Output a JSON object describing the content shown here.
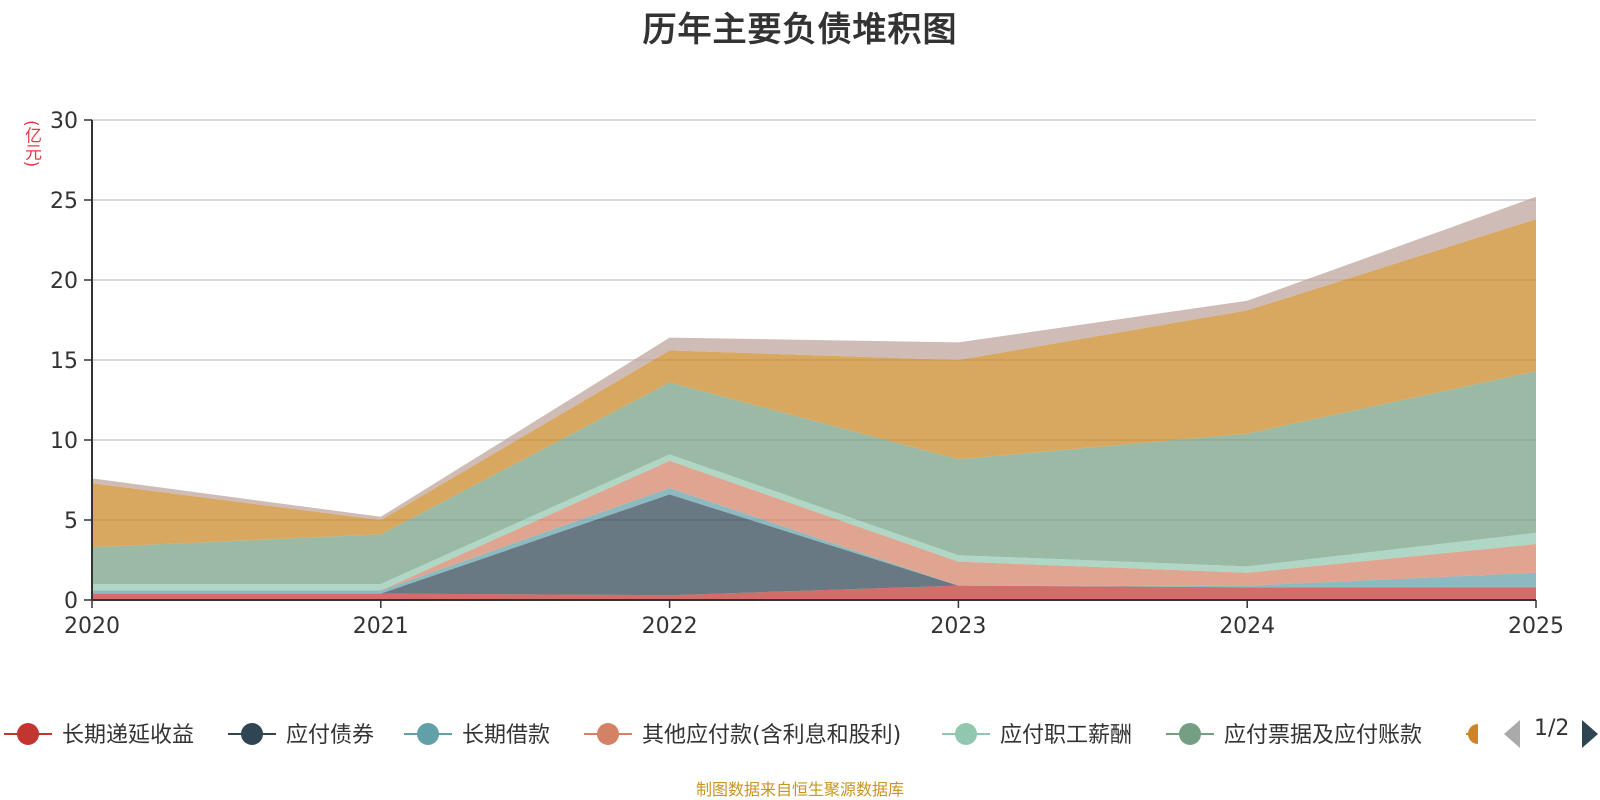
{
  "title": "历年主要负债堆积图",
  "unit_label": "(亿元)",
  "source_note": "制图数据来自恒生聚源数据库",
  "pager": {
    "text": "1/2"
  },
  "chart_data": {
    "type": "area",
    "stacked": true,
    "title": "历年主要负债堆积图",
    "ylabel": "(亿元)",
    "x": [
      "2020",
      "2021",
      "2022",
      "2023",
      "2024",
      "2025"
    ],
    "ylim": [
      0,
      30
    ],
    "yticks": [
      0,
      5,
      10,
      15,
      20,
      25,
      30
    ],
    "grid": true,
    "legend_position": "bottom",
    "series": [
      {
        "name": "长期递延收益",
        "color": "#c23531",
        "values": [
          0.4,
          0.4,
          0.3,
          0.9,
          0.8,
          0.8
        ],
        "visible_in_legend": true
      },
      {
        "name": "应付债券",
        "color": "#2f4554",
        "values": [
          0.0,
          0.0,
          6.3,
          0.0,
          0.0,
          0.0
        ],
        "visible_in_legend": true
      },
      {
        "name": "长期借款",
        "color": "#61a0a8",
        "values": [
          0.2,
          0.2,
          0.4,
          0.0,
          0.1,
          0.9
        ],
        "visible_in_legend": true
      },
      {
        "name": "其他应付款(含利息和股利)",
        "color": "#d48265",
        "values": [
          0.0,
          0.0,
          1.7,
          1.5,
          0.8,
          1.8
        ],
        "visible_in_legend": true
      },
      {
        "name": "应付职工薪酬",
        "color": "#91c7ae",
        "values": [
          0.4,
          0.4,
          0.4,
          0.4,
          0.4,
          0.7
        ],
        "visible_in_legend": true
      },
      {
        "name": "应付票据及应付账款",
        "color": "#749f83",
        "values": [
          2.3,
          3.1,
          4.5,
          6.0,
          8.3,
          10.1
        ],
        "visible_in_legend": true
      },
      {
        "name": "",
        "color": "#ca8622",
        "values": [
          4.0,
          0.9,
          2.0,
          6.2,
          7.7,
          9.5
        ],
        "visible_in_legend": false
      },
      {
        "name": "",
        "color": "#bda29a",
        "values": [
          0.3,
          0.2,
          0.8,
          1.1,
          0.6,
          1.4
        ],
        "visible_in_legend": false
      }
    ]
  }
}
